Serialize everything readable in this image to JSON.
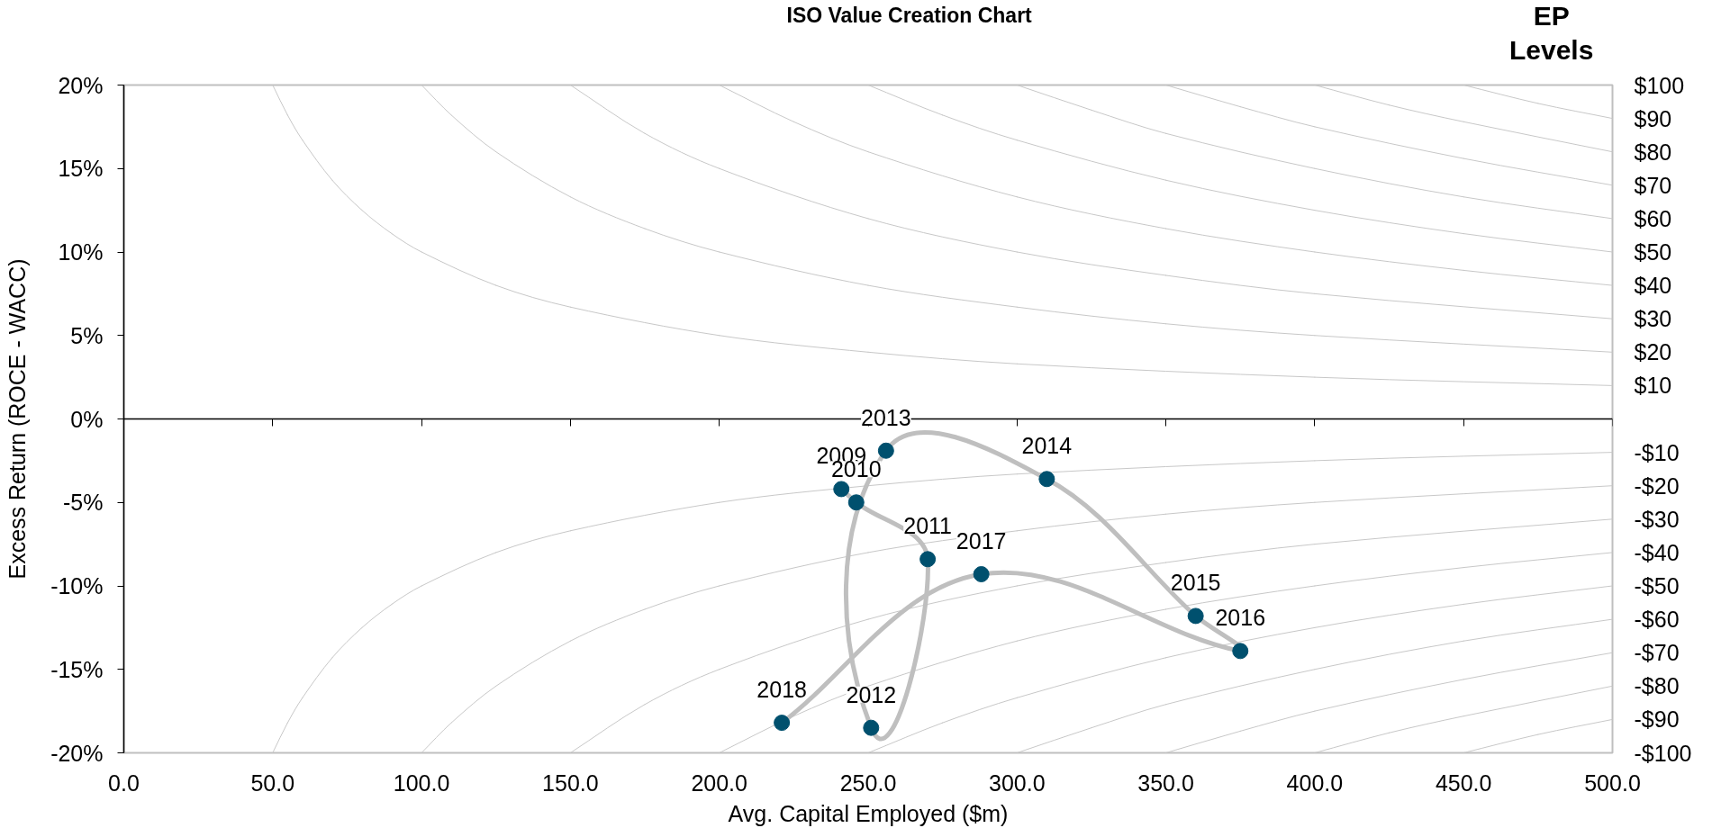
{
  "chart_data": {
    "type": "line",
    "title": "ISO Value Creation Chart",
    "xlabel": "Avg. Capital Employed ($m)",
    "ylabel": "Excess Return (ROCE - WACC)",
    "y2label": "EP Levels",
    "xlim": [
      0,
      500
    ],
    "xticks": [
      {
        "value": 0,
        "label": "0.0"
      },
      {
        "value": 50,
        "label": "50.0"
      },
      {
        "value": 100,
        "label": "100.0"
      },
      {
        "value": 150,
        "label": "150.0"
      },
      {
        "value": 200,
        "label": "200.0"
      },
      {
        "value": 250,
        "label": "250.0"
      },
      {
        "value": 300,
        "label": "300.0"
      },
      {
        "value": 350,
        "label": "350.0"
      },
      {
        "value": 400,
        "label": "400.0"
      },
      {
        "value": 450,
        "label": "450.0"
      },
      {
        "value": 500,
        "label": "500.0"
      }
    ],
    "ylim": [
      -20,
      20
    ],
    "yticks": [
      {
        "value": -20,
        "label": "-20%"
      },
      {
        "value": -15,
        "label": "-15%"
      },
      {
        "value": -10,
        "label": "-10%"
      },
      {
        "value": -5,
        "label": "-5%"
      },
      {
        "value": 0,
        "label": "0%"
      },
      {
        "value": 5,
        "label": "5%"
      },
      {
        "value": 10,
        "label": "10%"
      },
      {
        "value": 15,
        "label": "15%"
      },
      {
        "value": 20,
        "label": "20%"
      }
    ],
    "y2lim": [
      -100,
      100
    ],
    "y2ticks": [
      {
        "value": 100,
        "label": "$100"
      },
      {
        "value": 90,
        "label": "$90"
      },
      {
        "value": 80,
        "label": "$80"
      },
      {
        "value": 70,
        "label": "$70"
      },
      {
        "value": 60,
        "label": "$60"
      },
      {
        "value": 50,
        "label": "$50"
      },
      {
        "value": 40,
        "label": "$40"
      },
      {
        "value": 30,
        "label": "$30"
      },
      {
        "value": 20,
        "label": "$20"
      },
      {
        "value": 10,
        "label": "$10"
      },
      {
        "value": -10,
        "label": "-$10"
      },
      {
        "value": -20,
        "label": "-$20"
      },
      {
        "value": -30,
        "label": "-$30"
      },
      {
        "value": -40,
        "label": "-$40"
      },
      {
        "value": -50,
        "label": "-$50"
      },
      {
        "value": -60,
        "label": "-$60"
      },
      {
        "value": -70,
        "label": "-$70"
      },
      {
        "value": -80,
        "label": "-$80"
      },
      {
        "value": -90,
        "label": "-$90"
      },
      {
        "value": -100,
        "label": "-$100"
      }
    ],
    "ref_lines": [
      {
        "axis": "y",
        "value": 0,
        "color": "#000000"
      }
    ],
    "series": [
      {
        "color": "#c8c8c8",
        "x": [
          50,
          55,
          60,
          70,
          80,
          90,
          100,
          125,
          150,
          200,
          250,
          300,
          400,
          500
        ],
        "values": [
          20,
          18.2,
          16.7,
          14.3,
          12.5,
          11.1,
          10,
          8,
          6.7,
          5,
          4,
          3.3,
          2.5,
          2
        ]
      },
      {
        "color": "#c8c8c8",
        "x": [
          100,
          110,
          125,
          150,
          175,
          200,
          250,
          300,
          350,
          400,
          500
        ],
        "values": [
          20,
          18.2,
          16,
          13.3,
          11.4,
          10,
          8,
          6.7,
          5.7,
          5,
          4
        ]
      },
      {
        "color": "#c8c8c8",
        "x": [
          150,
          175,
          200,
          250,
          300,
          350,
          400,
          500
        ],
        "values": [
          20,
          17.1,
          15,
          12,
          10,
          8.6,
          7.5,
          6
        ]
      },
      {
        "color": "#c8c8c8",
        "x": [
          200,
          225,
          250,
          300,
          350,
          400,
          450,
          500
        ],
        "values": [
          20,
          17.8,
          16,
          13.3,
          11.4,
          10,
          8.9,
          8
        ]
      },
      {
        "color": "#c8c8c8",
        "x": [
          250,
          275,
          300,
          350,
          400,
          450,
          500
        ],
        "values": [
          20,
          18.2,
          16.7,
          14.3,
          12.5,
          11.1,
          10
        ]
      },
      {
        "color": "#c8c8c8",
        "x": [
          300,
          325,
          350,
          400,
          450,
          500
        ],
        "values": [
          20,
          18.5,
          17.1,
          15,
          13.3,
          12
        ]
      },
      {
        "color": "#c8c8c8",
        "x": [
          350,
          375,
          400,
          450,
          500
        ],
        "values": [
          20,
          18.7,
          17.5,
          15.6,
          14
        ]
      },
      {
        "color": "#c8c8c8",
        "x": [
          400,
          425,
          450,
          500
        ],
        "values": [
          20,
          18.8,
          17.8,
          16
        ]
      },
      {
        "color": "#c8c8c8",
        "x": [
          450,
          475,
          500
        ],
        "values": [
          20,
          18.9,
          18
        ]
      },
      {
        "color": "#c8c8c8",
        "x": [
          50,
          55,
          60,
          70,
          80,
          90,
          100,
          125,
          150,
          200,
          250,
          300,
          400,
          500
        ],
        "values": [
          -20,
          -18.2,
          -16.7,
          -14.3,
          -12.5,
          -11.1,
          -10,
          -8,
          -6.7,
          -5,
          -4,
          -3.3,
          -2.5,
          -2
        ]
      },
      {
        "color": "#c8c8c8",
        "x": [
          100,
          110,
          125,
          150,
          175,
          200,
          250,
          300,
          350,
          400,
          500
        ],
        "values": [
          -20,
          -18.2,
          -16,
          -13.3,
          -11.4,
          -10,
          -8,
          -6.7,
          -5.7,
          -5,
          -4
        ]
      },
      {
        "color": "#c8c8c8",
        "x": [
          150,
          175,
          200,
          250,
          300,
          350,
          400,
          500
        ],
        "values": [
          -20,
          -17.1,
          -15,
          -12,
          -10,
          -8.6,
          -7.5,
          -6
        ]
      },
      {
        "color": "#c8c8c8",
        "x": [
          200,
          225,
          250,
          300,
          350,
          400,
          450,
          500
        ],
        "values": [
          -20,
          -17.8,
          -16,
          -13.3,
          -11.4,
          -10,
          -8.9,
          -8
        ]
      },
      {
        "color": "#c8c8c8",
        "x": [
          250,
          275,
          300,
          350,
          400,
          450,
          500
        ],
        "values": [
          -20,
          -18.2,
          -16.7,
          -14.3,
          -12.5,
          -11.1,
          -10
        ]
      },
      {
        "color": "#c8c8c8",
        "x": [
          300,
          325,
          350,
          400,
          450,
          500
        ],
        "values": [
          -20,
          -18.5,
          -17.1,
          -15,
          -13.3,
          -12
        ]
      },
      {
        "color": "#c8c8c8",
        "x": [
          350,
          375,
          400,
          450,
          500
        ],
        "values": [
          -20,
          -18.7,
          -17.5,
          -15.6,
          -14
        ]
      },
      {
        "color": "#c8c8c8",
        "x": [
          400,
          425,
          450,
          500
        ],
        "values": [
          -20,
          -18.8,
          -17.8,
          -16
        ]
      },
      {
        "color": "#c8c8c8",
        "x": [
          450,
          475,
          500
        ],
        "values": [
          -20,
          -18.9,
          -18
        ]
      },
      {
        "color": "#bfbfbf",
        "marker": "circle",
        "colors": [
          "#00506e",
          "#00506e",
          "#00506e",
          "#00506e",
          "#00506e",
          "#00506e",
          "#00506e",
          "#00506e",
          "#00506e",
          "#00506e"
        ],
        "x": [
          241,
          246,
          270,
          251,
          256,
          310,
          360,
          375,
          288,
          221
        ],
        "values": [
          -4.2,
          -5.0,
          -8.4,
          -18.5,
          -1.9,
          -3.6,
          -11.8,
          -13.9,
          -9.3,
          -18.2
        ]
      }
    ],
    "annotations": [
      {
        "text": "2009",
        "x": 241,
        "y": -4.2
      },
      {
        "text": "2010",
        "x": 246,
        "y": -5.0
      },
      {
        "text": "2011",
        "x": 270,
        "y": -8.4
      },
      {
        "text": "2012",
        "x": 251,
        "y": -18.5
      },
      {
        "text": "2013",
        "x": 256,
        "y": -1.9
      },
      {
        "text": "2014",
        "x": 310,
        "y": -3.6
      },
      {
        "text": "2015",
        "x": 360,
        "y": -11.8
      },
      {
        "text": "2016",
        "x": 375,
        "y": -13.9
      },
      {
        "text": "2017",
        "x": 288,
        "y": -9.3
      },
      {
        "text": "2018",
        "x": 221,
        "y": -18.2
      }
    ]
  }
}
